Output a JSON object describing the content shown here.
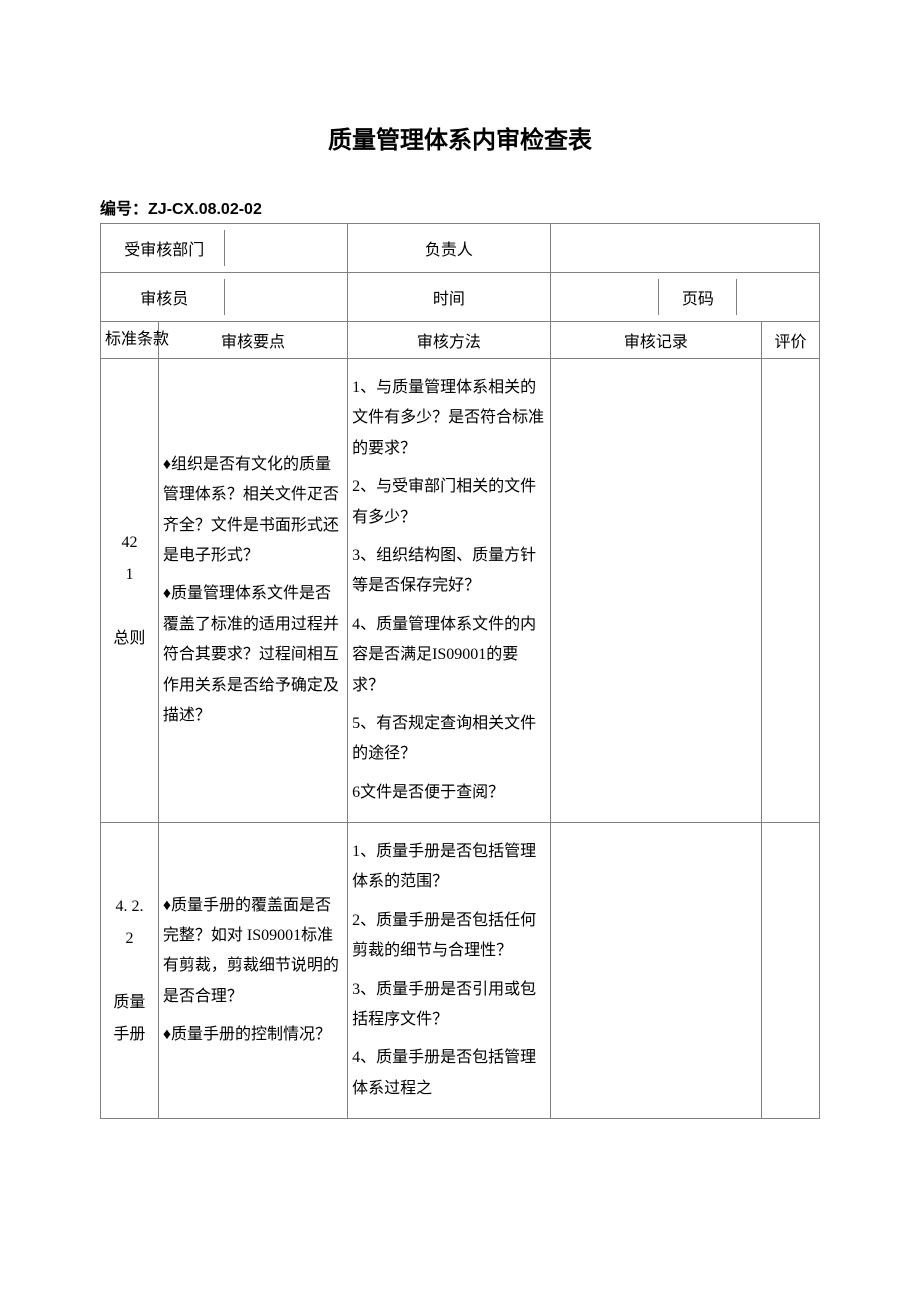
{
  "title": "质量管理体系内审检查表",
  "doc_no_label": "编号：",
  "doc_no_value": "ZJ-CX.08.02-02",
  "header": {
    "dept_label": "受审核部门",
    "dept_value": "",
    "owner_label": "负责人",
    "owner_value": "",
    "auditor_label": "审核员",
    "auditor_value": "",
    "time_label": "时间",
    "time_value": "",
    "page_label": "页码",
    "page_value": ""
  },
  "columns": {
    "clause": "标准条款",
    "point": "审核要点",
    "method": "审核方法",
    "record": "审核记录",
    "eval": "评价"
  },
  "rows": [
    {
      "clause_lines": [
        "42",
        "1",
        "",
        "总则"
      ],
      "points": [
        "♦组织是否有文化的质量管理体系？相关文件疋否齐全？文件是书面形式还是电子形式？",
        "♦质量管理体系文件是否覆盖了标准的适用过程并符合其要求？过程间相互作用关系是否给予确定及描述？"
      ],
      "methods": [
        "1、与质量管理体系相关的文件有多少？是否符合标准的要求？",
        "2、与受审部门相关的文件有多少？",
        "3、组织结构图、质量方针等是否保存完好？",
        "4、质量管理体系文件的内容是否满足IS09001的要求？",
        "5、有否规定查询相关文件的途径？",
        "6文件是否便于查阅？"
      ],
      "record": "",
      "eval": ""
    },
    {
      "clause_lines": [
        "4. 2.",
        "2",
        "",
        "质量",
        "手册"
      ],
      "points": [
        "♦质量手册的覆盖面是否完整？如对 IS09001标准有剪裁，剪裁细节说明的是否合理？",
        "♦质量手册的控制情况？"
      ],
      "methods": [
        "1、质量手册是否包括管理体系的范围？",
        "2、质量手册是否包括任何剪裁的细节与合理性？",
        "3、质量手册是否引用或包括程序文件？",
        "4、质量手册是否包括管理体系过程之"
      ],
      "record": "",
      "eval": ""
    }
  ]
}
